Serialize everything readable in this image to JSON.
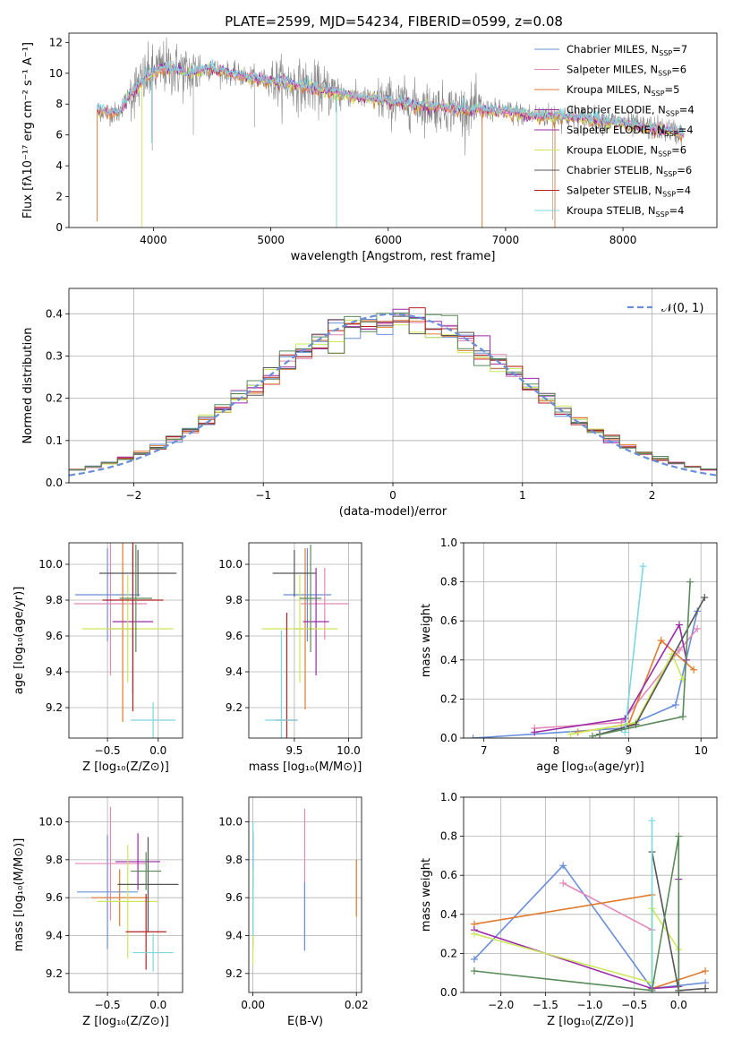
{
  "figure": {
    "title": "PLATE=2599, MJD=54234, FIBERID=0599, z=0.08"
  },
  "series_colors": {
    "chabrier_miles": "#6a8fd8",
    "salpeter_miles": "#e08ab8",
    "kroupa_miles": "#e07b2e",
    "chabrier_elodie": "#9b2aa8",
    "kroupa_elodie": "#cce85a",
    "chabrier_stelib": "#555555",
    "salpeter_stelib": "#b22222",
    "kroupa_stelib": "#7ad8e0",
    "extra_green": "#5a8a5a",
    "spectrum_data": "#888888"
  },
  "chart_data": [
    {
      "id": "spectrum",
      "type": "line",
      "xlabel": "wavelength [Angstrom, rest frame]",
      "ylabel": "Flux [fλ10⁻¹⁷ erg cm⁻² s⁻¹ A⁻¹]",
      "xlim": [
        3280,
        8800
      ],
      "ylim": [
        0,
        12.6
      ],
      "xticks": [
        4000,
        5000,
        6000,
        7000,
        8000
      ],
      "yticks": [
        0,
        2,
        4,
        6,
        8,
        10,
        12
      ],
      "legend_loc": "upper right",
      "legend": [
        {
          "label": "Chabrier MILES, N",
          "sub": "SSP",
          "val": "=7",
          "color": "chabrier_miles"
        },
        {
          "label": "Salpeter MILES, N",
          "sub": "SSP",
          "val": "=6",
          "color": "salpeter_miles"
        },
        {
          "label": "Kroupa MILES, N",
          "sub": "SSP",
          "val": "=5",
          "color": "kroupa_miles"
        },
        {
          "label": "Chabrier ELODIE, N",
          "sub": "SSP",
          "val": "=4",
          "color": "chabrier_elodie"
        },
        {
          "label": "Salpeter ELODIE, N",
          "sub": "SSP",
          "val": "=4",
          "color": "chabrier_elodie"
        },
        {
          "label": "Kroupa ELODIE, N",
          "sub": "SSP",
          "val": "=6",
          "color": "kroupa_elodie"
        },
        {
          "label": "Chabrier STELIB, N",
          "sub": "SSP",
          "val": "=6",
          "color": "chabrier_stelib"
        },
        {
          "label": "Salpeter STELIB, N",
          "sub": "SSP",
          "val": "=4",
          "color": "salpeter_stelib"
        },
        {
          "label": "Kroupa STELIB, N",
          "sub": "SSP",
          "val": "=4",
          "color": "kroupa_stelib"
        }
      ],
      "continuum": [
        [
          3520,
          7.6
        ],
        [
          3700,
          7.4
        ],
        [
          3800,
          8.6
        ],
        [
          3950,
          9.8
        ],
        [
          4100,
          10.4
        ],
        [
          4300,
          10.0
        ],
        [
          4500,
          10.3
        ],
        [
          4700,
          9.9
        ],
        [
          4900,
          9.6
        ],
        [
          5100,
          9.4
        ],
        [
          5400,
          9.0
        ],
        [
          5700,
          8.5
        ],
        [
          6000,
          8.2
        ],
        [
          6300,
          7.9
        ],
        [
          6600,
          7.7
        ],
        [
          6900,
          7.6
        ],
        [
          7200,
          7.3
        ],
        [
          7500,
          7.2
        ],
        [
          7800,
          7.0
        ],
        [
          8100,
          6.6
        ],
        [
          8400,
          6.3
        ],
        [
          8520,
          6.0
        ]
      ]
    },
    {
      "id": "residuals",
      "type": "histogram",
      "xlabel": "(data-model)/error",
      "ylabel": "Normed distribution",
      "xlim": [
        -2.5,
        2.5
      ],
      "ylim": [
        0,
        0.46
      ],
      "xticks": [
        -2,
        -1,
        0,
        1,
        2
      ],
      "yticks": [
        0.0,
        0.1,
        0.2,
        0.3,
        0.4
      ],
      "legend_loc": "upper right",
      "legend": [
        {
          "label": "𝒩(0, 1)",
          "style": "dashed",
          "color": "chabrier_miles"
        }
      ],
      "bins": 40,
      "gaussian": {
        "mean": 0,
        "sigma": 1
      }
    },
    {
      "id": "age_vs_Z",
      "type": "errorbar",
      "xlabel": "Z [log₁₀(Z/Z⊙)]",
      "ylabel": "age  [log₁₀(age/yr)]",
      "xlim": [
        -0.88,
        0.24
      ],
      "ylim": [
        9.03,
        10.12
      ],
      "xticks": [
        -0.5,
        0.0
      ],
      "yticks": [
        9.2,
        9.4,
        9.6,
        9.8,
        10.0
      ],
      "points": [
        {
          "x": -0.5,
          "y": 9.83,
          "xerr": 0.32,
          "yerr": 0.26,
          "color": "chabrier_miles"
        },
        {
          "x": -0.47,
          "y": 9.78,
          "xerr": 0.36,
          "yerr": 0.4,
          "color": "salpeter_miles"
        },
        {
          "x": -0.35,
          "y": 9.64,
          "xerr": 0.15,
          "yerr": 0.52,
          "color": "kroupa_miles"
        },
        {
          "x": -0.25,
          "y": 9.68,
          "xerr": 0.2,
          "yerr": 0.4,
          "color": "chabrier_elodie"
        },
        {
          "x": -0.3,
          "y": 9.64,
          "xerr": 0.45,
          "yerr": 0.3,
          "color": "kroupa_elodie"
        },
        {
          "x": -0.2,
          "y": 9.95,
          "xerr": 0.38,
          "yerr": 0.13,
          "color": "chabrier_stelib"
        },
        {
          "x": -0.25,
          "y": 9.8,
          "xerr": 0.3,
          "yerr": 0.62,
          "color": "salpeter_stelib"
        },
        {
          "x": -0.05,
          "y": 9.13,
          "xerr": 0.22,
          "yerr": 0.1,
          "color": "kroupa_stelib"
        },
        {
          "x": -0.22,
          "y": 9.81,
          "xerr": 0.16,
          "yerr": 0.3,
          "color": "extra_green"
        }
      ]
    },
    {
      "id": "age_vs_mass",
      "type": "errorbar",
      "xlabel": "mass [log₁₀(M/M⊙)]",
      "ylabel": "",
      "xlim": [
        9.08,
        10.12
      ],
      "ylim": [
        9.03,
        10.12
      ],
      "xticks": [
        9.5,
        10.0
      ],
      "yticks": [
        9.2,
        9.4,
        9.6,
        9.8,
        10.0
      ],
      "points": [
        {
          "x": 9.62,
          "y": 9.83,
          "xerr": 0.22,
          "yerr": 0.26,
          "color": "chabrier_miles"
        },
        {
          "x": 9.78,
          "y": 9.78,
          "xerr": 0.22,
          "yerr": 0.2,
          "color": "salpeter_miles"
        },
        {
          "x": 9.6,
          "y": 9.64,
          "xerr": 0.1,
          "yerr": 0.45,
          "color": "kroupa_miles"
        },
        {
          "x": 9.7,
          "y": 9.68,
          "xerr": 0.12,
          "yerr": 0.3,
          "color": "chabrier_elodie"
        },
        {
          "x": 9.55,
          "y": 9.64,
          "xerr": 0.35,
          "yerr": 0.3,
          "color": "kroupa_elodie"
        },
        {
          "x": 9.5,
          "y": 9.95,
          "xerr": 0.2,
          "yerr": 0.13,
          "color": "chabrier_stelib"
        },
        {
          "x": 9.43,
          "y": 9.13,
          "xerr": 0.1,
          "yerr": 0.6,
          "color": "salpeter_stelib"
        },
        {
          "x": 9.38,
          "y": 9.13,
          "xerr": 0.15,
          "yerr": 0.5,
          "color": "kroupa_stelib"
        },
        {
          "x": 9.65,
          "y": 9.81,
          "xerr": 0.1,
          "yerr": 0.3,
          "color": "extra_green"
        }
      ]
    },
    {
      "id": "weight_vs_age",
      "type": "line",
      "xlabel": "age  [log₁₀(age/yr)]",
      "ylabel": "mass weight",
      "xlim": [
        6.72,
        10.22
      ],
      "ylim": [
        0,
        1.0
      ],
      "xticks": [
        7,
        8,
        9,
        10
      ],
      "yticks": [
        0.0,
        0.2,
        0.4,
        0.6,
        0.8,
        1.0
      ],
      "series": [
        {
          "color": "chabrier_miles",
          "points": [
            [
              6.85,
              0.0
            ],
            [
              8.9,
              0.05
            ],
            [
              9.65,
              0.17
            ],
            [
              9.95,
              0.65
            ]
          ]
        },
        {
          "color": "salpeter_miles",
          "points": [
            [
              7.7,
              0.05
            ],
            [
              8.9,
              0.08
            ],
            [
              9.7,
              0.45
            ],
            [
              9.95,
              0.56
            ]
          ]
        },
        {
          "color": "kroupa_miles",
          "points": [
            [
              8.3,
              0.03
            ],
            [
              9.0,
              0.07
            ],
            [
              9.45,
              0.5
            ],
            [
              9.9,
              0.35
            ]
          ]
        },
        {
          "color": "chabrier_elodie",
          "points": [
            [
              7.7,
              0.03
            ],
            [
              8.95,
              0.1
            ],
            [
              9.7,
              0.58
            ],
            [
              9.8,
              0.4
            ]
          ]
        },
        {
          "color": "kroupa_elodie",
          "points": [
            [
              8.2,
              0.02
            ],
            [
              9.1,
              0.08
            ],
            [
              9.6,
              0.43
            ],
            [
              9.75,
              0.3
            ]
          ]
        },
        {
          "color": "chabrier_stelib",
          "points": [
            [
              8.6,
              0.02
            ],
            [
              9.1,
              0.07
            ],
            [
              10.05,
              0.72
            ]
          ]
        },
        {
          "color": "kroupa_stelib",
          "points": [
            [
              8.95,
              0.03
            ],
            [
              9.2,
              0.88
            ]
          ]
        },
        {
          "color": "extra_green",
          "points": [
            [
              8.5,
              0.01
            ],
            [
              9.75,
              0.11
            ],
            [
              9.85,
              0.8
            ]
          ]
        }
      ]
    },
    {
      "id": "mass_vs_Z",
      "type": "errorbar",
      "xlabel": "Z [log₁₀(Z/Z⊙)]",
      "ylabel": "mass [log₁₀(M/M⊙)]",
      "xlim": [
        -0.88,
        0.24
      ],
      "ylim": [
        9.1,
        10.13
      ],
      "xticks": [
        -0.5,
        0.0
      ],
      "yticks": [
        9.2,
        9.4,
        9.6,
        9.8,
        10.0
      ],
      "points": [
        {
          "x": -0.5,
          "y": 9.63,
          "xerr": 0.3,
          "yerr": 0.3,
          "color": "chabrier_miles"
        },
        {
          "x": -0.47,
          "y": 9.78,
          "xerr": 0.35,
          "yerr": 0.3,
          "color": "salpeter_miles"
        },
        {
          "x": -0.38,
          "y": 9.6,
          "xerr": 0.28,
          "yerr": 0.15,
          "color": "kroupa_miles"
        },
        {
          "x": -0.2,
          "y": 9.79,
          "xerr": 0.22,
          "yerr": 0.15,
          "color": "chabrier_elodie"
        },
        {
          "x": -0.3,
          "y": 9.58,
          "xerr": 0.3,
          "yerr": 0.3,
          "color": "kroupa_elodie"
        },
        {
          "x": -0.1,
          "y": 9.67,
          "xerr": 0.3,
          "yerr": 0.25,
          "color": "chabrier_stelib"
        },
        {
          "x": -0.12,
          "y": 9.42,
          "xerr": 0.2,
          "yerr": 0.2,
          "color": "salpeter_stelib"
        },
        {
          "x": -0.05,
          "y": 9.31,
          "xerr": 0.2,
          "yerr": 0.1,
          "color": "kroupa_stelib"
        },
        {
          "x": -0.12,
          "y": 9.74,
          "xerr": 0.15,
          "yerr": 0.1,
          "color": "extra_green"
        }
      ]
    },
    {
      "id": "mass_vs_ebv",
      "type": "errorbar",
      "xlabel": "E(B-V)",
      "ylabel": "",
      "xlim": [
        -0.0008,
        0.021
      ],
      "ylim": [
        9.1,
        10.13
      ],
      "xticks": [
        0.0,
        0.02
      ],
      "yticks": [
        9.2,
        9.4,
        9.6,
        9.8,
        10.0
      ],
      "points": [
        {
          "x": 0.0,
          "y": 9.63,
          "xerr": 0,
          "yerr": 0.3,
          "color": "chabrier_miles"
        },
        {
          "x": 0.0,
          "y": 9.8,
          "xerr": 0,
          "yerr": 0.15,
          "color": "salpeter_stelib"
        },
        {
          "x": 0.0,
          "y": 9.5,
          "xerr": 0,
          "yerr": 0.25,
          "color": "kroupa_elodie"
        },
        {
          "x": 0.0,
          "y": 9.7,
          "xerr": 0,
          "yerr": 0.3,
          "color": "kroupa_stelib"
        },
        {
          "x": 0.01,
          "y": 9.7,
          "xerr": 0,
          "yerr": 0.37,
          "color": "salpeter_miles"
        },
        {
          "x": 0.01,
          "y": 9.5,
          "xerr": 0,
          "yerr": 0.18,
          "color": "chabrier_miles"
        },
        {
          "x": 0.02,
          "y": 9.65,
          "xerr": 0,
          "yerr": 0.15,
          "color": "kroupa_miles"
        }
      ]
    },
    {
      "id": "weight_vs_Z",
      "type": "line",
      "xlabel": "Z [log₁₀(Z/Z⊙)]",
      "ylabel": "mass weight",
      "xlim": [
        -2.42,
        0.43
      ],
      "ylim": [
        0,
        1.0
      ],
      "xticks": [
        -2.0,
        -1.5,
        -1.0,
        -0.5,
        0.0
      ],
      "yticks": [
        0.0,
        0.2,
        0.4,
        0.6,
        0.8,
        1.0
      ],
      "series": [
        {
          "color": "chabrier_miles",
          "points": [
            [
              -2.3,
              0.17
            ],
            [
              -1.3,
              0.65
            ],
            [
              -0.3,
              0.02
            ],
            [
              0.3,
              0.05
            ]
          ]
        },
        {
          "color": "salpeter_miles",
          "points": [
            [
              -1.3,
              0.56
            ],
            [
              -0.3,
              0.32
            ]
          ]
        },
        {
          "color": "kroupa_miles",
          "points": [
            [
              -2.3,
              0.35
            ],
            [
              -0.3,
              0.5
            ],
            [
              -0.3,
              0.02
            ],
            [
              0.3,
              0.11
            ]
          ]
        },
        {
          "color": "chabrier_elodie",
          "points": [
            [
              -2.3,
              0.32
            ],
            [
              -0.3,
              0.02
            ],
            [
              0.0,
              0.03
            ],
            [
              0.0,
              0.58
            ]
          ]
        },
        {
          "color": "kroupa_elodie",
          "points": [
            [
              -2.3,
              0.3
            ],
            [
              -0.3,
              0.05
            ],
            [
              -0.3,
              0.43
            ],
            [
              0.0,
              0.22
            ]
          ]
        },
        {
          "color": "chabrier_stelib",
          "points": [
            [
              -0.3,
              0.72
            ],
            [
              0.0,
              0.01
            ],
            [
              0.3,
              0.02
            ]
          ]
        },
        {
          "color": "kroupa_stelib",
          "points": [
            [
              -0.3,
              0.88
            ],
            [
              -0.3,
              0.0
            ]
          ]
        },
        {
          "color": "extra_green",
          "points": [
            [
              -2.3,
              0.11
            ],
            [
              -0.3,
              0.01
            ],
            [
              0.0,
              0.8
            ],
            [
              0.0,
              0.0
            ]
          ]
        }
      ]
    }
  ]
}
